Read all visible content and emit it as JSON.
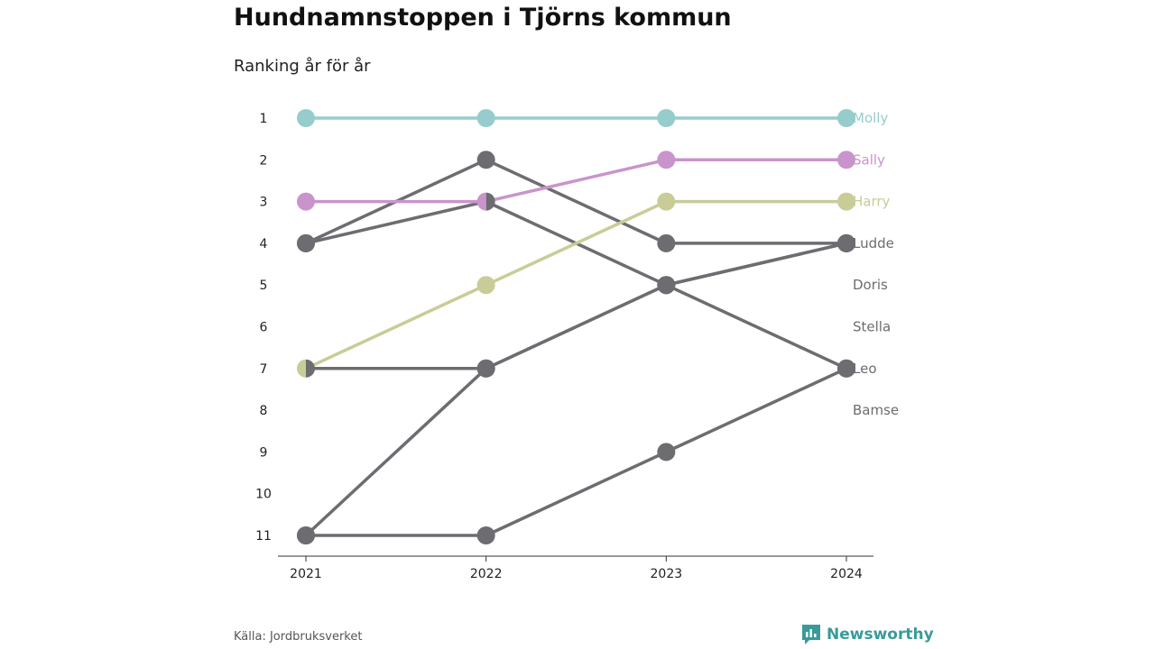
{
  "header": {
    "title": "Hundnamnstoppen i Tjörns kommun",
    "subtitle": "Ranking år för år"
  },
  "footer": {
    "source": "Källa: Jordbruksverket",
    "brand": "Newsworthy",
    "brand_icon": "bar-chart-logo-icon",
    "brand_color": "#3a9a9a"
  },
  "chart_data": {
    "type": "line",
    "chart_kind": "bump",
    "x": [
      "2021",
      "2022",
      "2023",
      "2024"
    ],
    "ylim": [
      1,
      11
    ],
    "y_inverted": true,
    "y_ticks": [
      "1",
      "2",
      "3",
      "4",
      "5",
      "6",
      "7",
      "8",
      "9",
      "10",
      "11"
    ],
    "grid": false,
    "legend": "direct labels at right",
    "series": [
      {
        "name": "Molly",
        "values": [
          1,
          1,
          1,
          1
        ],
        "color": "#96cccc"
      },
      {
        "name": "Sally",
        "values": [
          3,
          3,
          2,
          2
        ],
        "color": "#c994cc"
      },
      {
        "name": "Harry",
        "values": [
          7,
          5,
          3,
          3
        ],
        "color": "#c9cc96"
      },
      {
        "name": "Ludde",
        "values": [
          4,
          2,
          4,
          4
        ],
        "color": "#6d6c71"
      },
      {
        "name": "Doris",
        "values": [
          11,
          7,
          5,
          4
        ],
        "color": "#6d6c71"
      },
      {
        "name": "Stella",
        "values": [
          7,
          7,
          5,
          4
        ],
        "color": "#6d6c71"
      },
      {
        "name": "Leo",
        "values": [
          4,
          3,
          5,
          7
        ],
        "color": "#6d6c71"
      },
      {
        "name": "Bamse",
        "values": [
          11,
          11,
          9,
          7
        ],
        "color": "#6d6c71"
      }
    ],
    "label_ranks": [
      1,
      2,
      3,
      4,
      5,
      6,
      7,
      8
    ]
  }
}
